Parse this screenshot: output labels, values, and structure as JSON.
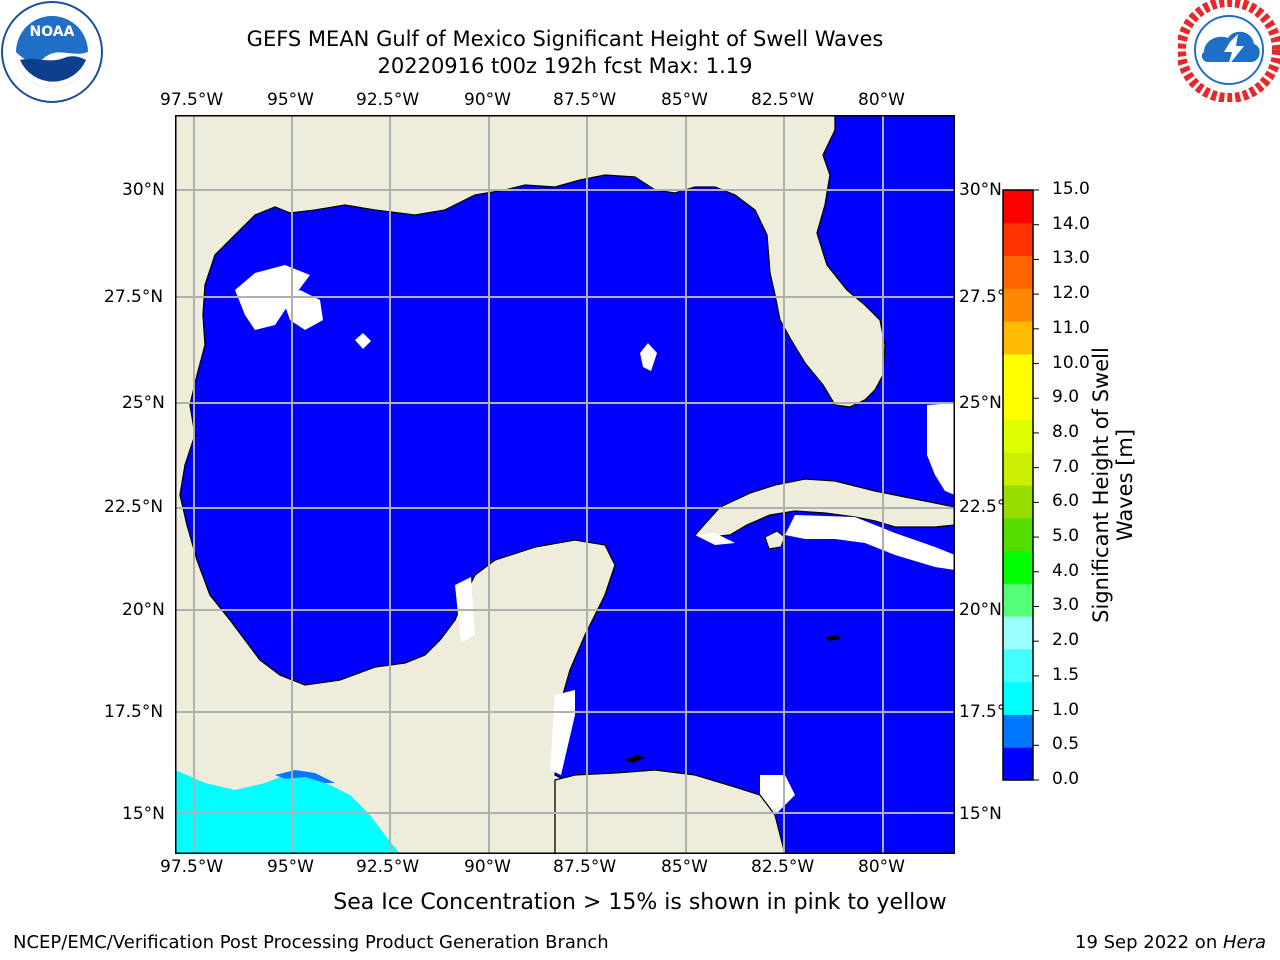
{
  "header": {
    "title_line1": "GEFS MEAN Gulf of Mexico Significant Height of Swell Waves",
    "title_line2": "20220916 t00z 192h fcst   Max: 1.19"
  },
  "logos": {
    "noaa_text": "NOAA",
    "noaa_ring": "NATIONAL OCEANIC AND ATMOSPHERIC ADMINISTRATION · U.S. DEPARTMENT OF COMMERCE",
    "nws_ring": "NATIONAL WEATHER SERVICE"
  },
  "map": {
    "lon_labels": [
      "97.5°W",
      "95°W",
      "92.5°W",
      "90°W",
      "87.5°W",
      "85°W",
      "82.5°W",
      "80°W"
    ],
    "lat_labels": [
      "30°N",
      "27.5°N",
      "25°N",
      "22.5°N",
      "20°N",
      "17.5°N",
      "15°N"
    ],
    "colors": {
      "land": "#eeeddc",
      "ocean_low": "#0000ff",
      "ocean_shallow": "#00ffff",
      "gridline": "#b0b0b0"
    }
  },
  "colorbar": {
    "title": "Significant Height of Swell Waves [m]",
    "labels": [
      "15.0",
      "14.0",
      "13.0",
      "12.0",
      "11.0",
      "10.0",
      "9.0",
      "8.0",
      "7.0",
      "6.0",
      "5.0",
      "4.0",
      "3.0",
      "2.0",
      "1.5",
      "1.0",
      "0.5",
      "0.0"
    ],
    "colors": [
      "#0000ff",
      "#0077ff",
      "#00ffff",
      "#44ffff",
      "#99ffff",
      "#55ff77",
      "#00ff00",
      "#55dd00",
      "#99dd00",
      "#ccee00",
      "#ddff00",
      "#ffff00",
      "#ffff00",
      "#ffbb00",
      "#ff8800",
      "#ff6600",
      "#ff3300",
      "#ff0000"
    ]
  },
  "footer": {
    "sea_ice_note": "Sea Ice Concentration > 15% is shown in pink to yellow",
    "left": "NCEP/EMC/Verification Post Processing Product Generation Branch",
    "date": "19 Sep 2022 on ",
    "machine": "Hera"
  }
}
